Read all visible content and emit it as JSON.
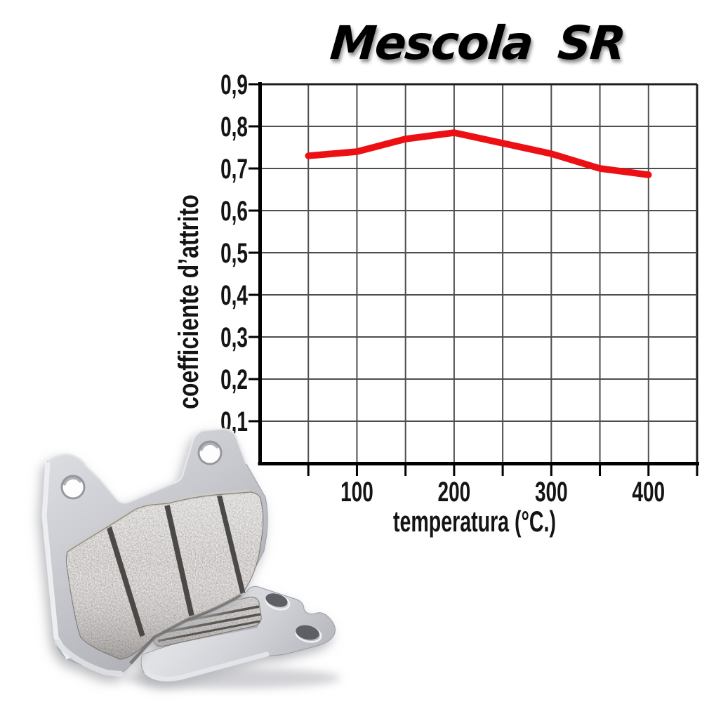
{
  "title": {
    "text": "Mescola SR"
  },
  "chart_data": {
    "type": "line",
    "title": "Mescola SR",
    "xlabel": "temperatura (°C.)",
    "ylabel": "coefficiente d’attrito",
    "x": [
      50,
      100,
      150,
      200,
      250,
      300,
      350,
      400
    ],
    "series": [
      {
        "name": "Mescola SR",
        "values": [
          0.73,
          0.74,
          0.77,
          0.785,
          0.76,
          0.735,
          0.7,
          0.685
        ]
      }
    ],
    "xlim": [
      0,
      450
    ],
    "ylim": [
      0,
      0.9
    ],
    "x_grid_step": 50,
    "y_grid_step": 0.1,
    "x_ticks": {
      "values": [
        100,
        200,
        300,
        400
      ],
      "labels": [
        "100",
        "200",
        "300",
        "400"
      ]
    },
    "y_ticks": {
      "values": [
        0.1,
        0.2,
        0.3,
        0.4,
        0.5,
        0.6,
        0.7,
        0.8,
        0.9
      ],
      "labels": [
        "0,1",
        "0,2",
        "0,3",
        "0,4",
        "0,5",
        "0,6",
        "0,7",
        "0,8",
        "0,9"
      ]
    },
    "grid": true,
    "legend_position": "none",
    "line_color": "#ec1014",
    "grid_color": "#4e4e4e",
    "axis_color": "#000000",
    "text_color": "#141414"
  },
  "illustration": {
    "icon_name": "brake-pads-illustration"
  }
}
